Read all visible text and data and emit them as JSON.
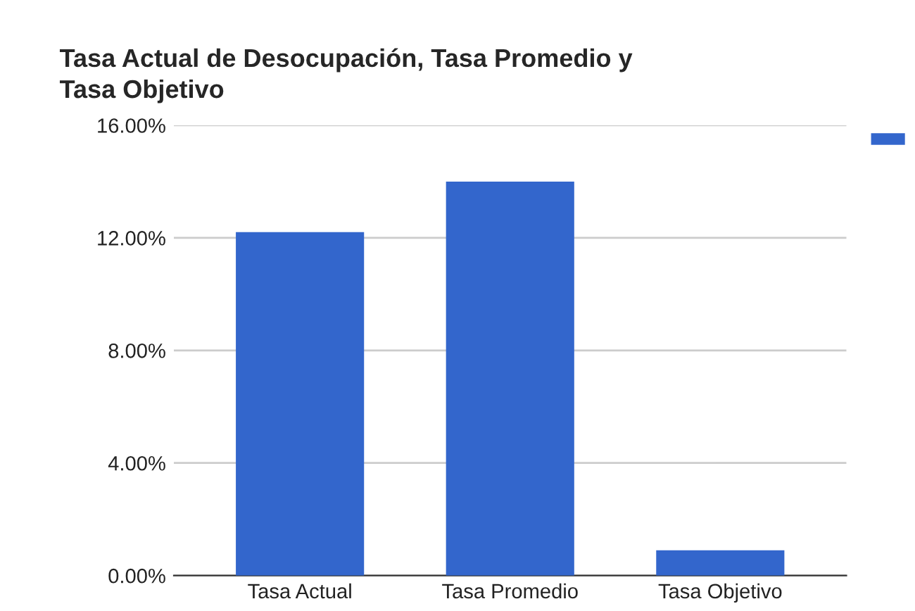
{
  "chart_data": {
    "type": "bar",
    "title": "Tasa Actual de Desocupación, Tasa Promedio y\nTasa Objetivo",
    "categories": [
      "Tasa Actual",
      "Tasa Promedio",
      "Tasa Objetivo"
    ],
    "series": [
      {
        "color": "#3366cc",
        "values": [
          12.2,
          14.0,
          0.9
        ]
      }
    ],
    "ylim": [
      0,
      16
    ],
    "yticks": [
      {
        "value": 0,
        "label": "0.00%"
      },
      {
        "value": 4,
        "label": "4.00%"
      },
      {
        "value": 8,
        "label": "8.00%"
      },
      {
        "value": 12,
        "label": "12.00%"
      },
      {
        "value": 16,
        "label": "16.00%"
      }
    ],
    "grid": "y"
  }
}
